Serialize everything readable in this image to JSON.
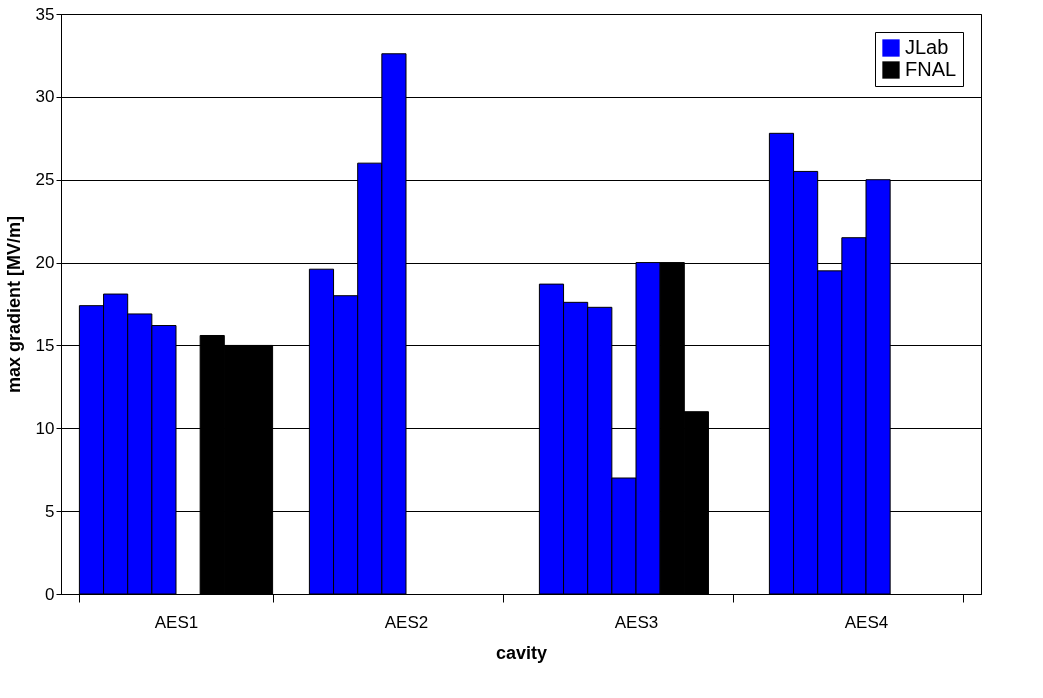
{
  "chart_data": {
    "type": "bar",
    "xlabel": "cavity",
    "ylabel": "max gradient [MV/m]",
    "categories": [
      "AES1",
      "AES2",
      "AES3",
      "AES4"
    ],
    "series": [
      {
        "name": "JLab",
        "color": "#0000ff",
        "values": [
          17.4,
          19.6,
          18.7,
          27.8
        ]
      },
      {
        "color": "#0000ff",
        "values": [
          18.1,
          18.0,
          17.6,
          25.5
        ]
      },
      {
        "color": "#0000ff",
        "values": [
          16.9,
          26.0,
          17.3,
          19.5
        ]
      },
      {
        "color": "#0000ff",
        "values": [
          16.2,
          32.6,
          7.0,
          21.5
        ]
      },
      {
        "color": "#0000ff",
        "values": [
          null,
          null,
          20.0,
          25.0
        ]
      },
      {
        "name": "FNAL",
        "color": "#000000",
        "values": [
          15.6,
          null,
          20.0,
          null
        ]
      },
      {
        "color": "#000000",
        "values": [
          15.0,
          null,
          11.0,
          null
        ]
      },
      {
        "color": "#000000",
        "values": [
          15.0,
          null,
          null,
          null
        ]
      }
    ],
    "ylim": [
      0,
      35
    ],
    "yticks": [
      0,
      5,
      10,
      15,
      20,
      25,
      30,
      35
    ],
    "grid": "y",
    "legend": "top right"
  }
}
